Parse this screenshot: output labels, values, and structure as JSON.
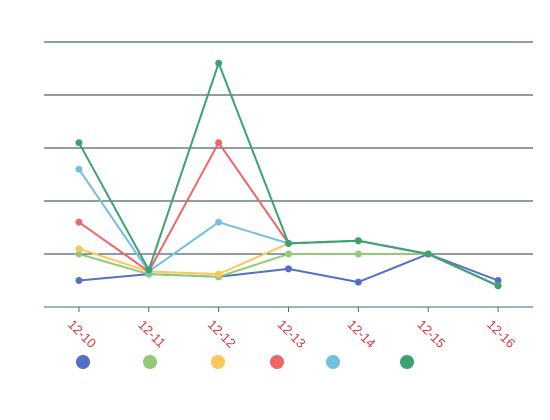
{
  "chart_data": {
    "type": "line",
    "title": "",
    "xlabel": "",
    "ylabel": "",
    "categories": [
      "12-10",
      "12-11",
      "12-12",
      "12-13",
      "12-14",
      "12-15",
      "12-16"
    ],
    "ylim": [
      0,
      50
    ],
    "grid": true,
    "legend_placement": "bottom",
    "series": [
      {
        "color": "#5470c6",
        "values": [
          5,
          6.2,
          5.7,
          7.2,
          4.7,
          10,
          5
        ]
      },
      {
        "color": "#91cc75",
        "values": [
          10,
          6.2,
          5.7,
          10,
          10,
          10,
          4
        ]
      },
      {
        "color": "#fac858",
        "values": [
          11,
          6.7,
          6.2,
          12,
          12.5,
          10,
          4
        ]
      },
      {
        "color": "#ee6666",
        "values": [
          16,
          6.7,
          31,
          12,
          12.5,
          10,
          4
        ]
      },
      {
        "color": "#73c0de",
        "values": [
          26,
          6.7,
          16,
          12,
          12.5,
          10,
          4
        ]
      },
      {
        "color": "#3ba272",
        "values": [
          31,
          7,
          46,
          12,
          12.5,
          10,
          4
        ]
      }
    ]
  }
}
